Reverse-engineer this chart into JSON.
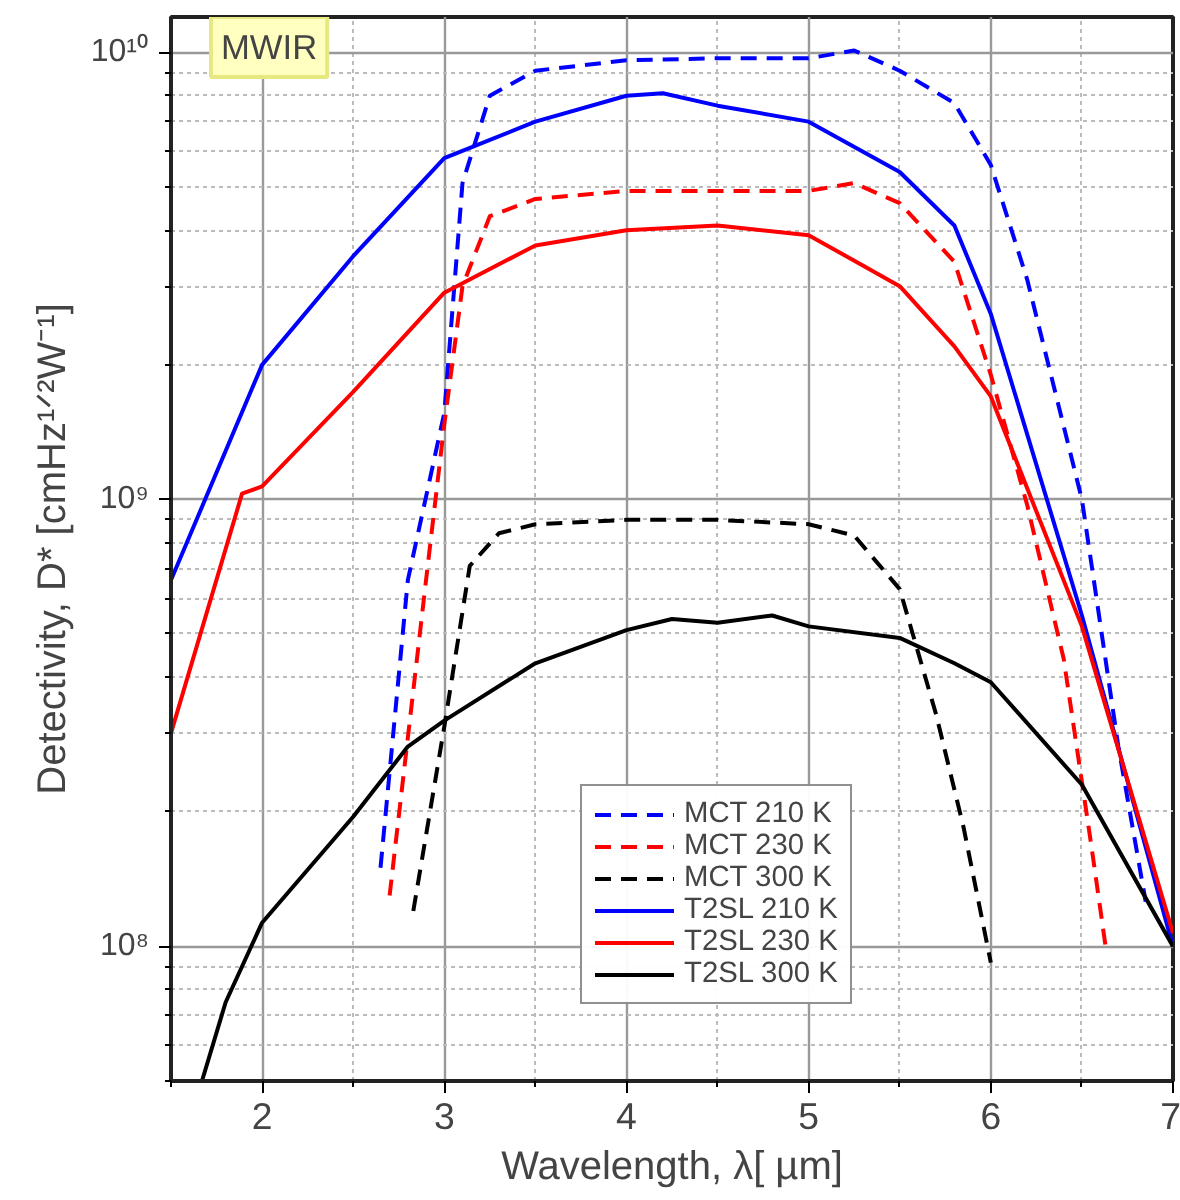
{
  "chart_data": {
    "type": "line",
    "xlabel": "Wavelength, λ[ µm]",
    "ylabel": "Detectivity, D* [cmHz¹ᐟ²W⁻¹]",
    "log": "y",
    "grid": true,
    "legend": "bottom",
    "xlim": [
      1.5,
      7
    ],
    "ylim": [
      50000000.0,
      12000000000.0
    ],
    "xticks": [
      2,
      3,
      4,
      5,
      6,
      7
    ],
    "yticks": [
      {
        "value": 100000000.0,
        "label": "10⁸"
      },
      {
        "value": 1000000000.0,
        "label": "10⁹"
      },
      {
        "value": 10000000000.0,
        "label": "10¹⁰"
      }
    ],
    "annotations": [
      "MWIR"
    ],
    "series": [
      {
        "name": "MCT 210 K",
        "color": "#0000ff",
        "line_style": "dashed",
        "x": [
          2.65,
          2.8,
          3.0,
          3.1,
          3.25,
          3.5,
          4.0,
          4.5,
          5.0,
          5.25,
          5.5,
          5.8,
          6.0,
          6.2,
          6.5,
          6.7,
          6.85
        ],
        "values": [
          150000000.0,
          660000000.0,
          1560000000.0,
          5100000000.0,
          8000000000.0,
          9100000000.0,
          9600000000.0,
          9700000000.0,
          9700000000.0,
          10100000000.0,
          9100000000.0,
          7700000000.0,
          5600000000.0,
          3100000000.0,
          1000000000.0,
          280000000.0,
          126000000.0
        ]
      },
      {
        "name": "MCT 230 K",
        "color": "#ff0000",
        "line_style": "dashed",
        "x": [
          2.7,
          2.9,
          3.0,
          3.1,
          3.25,
          3.5,
          4.0,
          4.5,
          5.0,
          5.25,
          5.5,
          5.8,
          6.0,
          6.2,
          6.4,
          6.55,
          6.63
        ],
        "values": [
          130000000.0,
          660000000.0,
          1470000000.0,
          3000000000.0,
          4300000000.0,
          4700000000.0,
          4900000000.0,
          4900000000.0,
          4900000000.0,
          5100000000.0,
          4600000000.0,
          3400000000.0,
          1900000000.0,
          970000000.0,
          440000000.0,
          170000000.0,
          100000000.0
        ]
      },
      {
        "name": "MCT 300 K",
        "color": "#000000",
        "line_style": "dashed",
        "x": [
          2.83,
          3.0,
          3.14,
          3.3,
          3.5,
          4.0,
          4.5,
          5.0,
          5.25,
          5.5,
          5.7,
          5.85,
          6.0
        ],
        "values": [
          120000000.0,
          310000000.0,
          710000000.0,
          840000000.0,
          880000000.0,
          900000000.0,
          900000000.0,
          880000000.0,
          830000000.0,
          630000000.0,
          330000000.0,
          185000000.0,
          92000000.0
        ]
      },
      {
        "name": "T2SL 210 K",
        "color": "#0000ff",
        "line_style": "solid",
        "x": [
          1.5,
          2.0,
          2.5,
          3.0,
          3.5,
          4.0,
          4.2,
          4.5,
          5.0,
          5.5,
          5.8,
          6.0,
          6.5,
          7.0
        ],
        "values": [
          660000000.0,
          2000000000.0,
          3500000000.0,
          5800000000.0,
          7000000000.0,
          8000000000.0,
          8100000000.0,
          7600000000.0,
          7000000000.0,
          5400000000.0,
          4100000000.0,
          2600000000.0,
          550000000.0,
          100000000.0
        ]
      },
      {
        "name": "T2SL 230 K",
        "color": "#ff0000",
        "line_style": "solid",
        "x": [
          1.5,
          1.89,
          2.0,
          2.5,
          3.0,
          3.5,
          4.0,
          4.5,
          5.0,
          5.5,
          5.8,
          6.0,
          6.5,
          7.0
        ],
        "values": [
          300000000.0,
          1030000000.0,
          1070000000.0,
          1740000000.0,
          2900000000.0,
          3700000000.0,
          4000000000.0,
          4100000000.0,
          3900000000.0,
          3000000000.0,
          2200000000.0,
          1700000000.0,
          520000000.0,
          107000000.0
        ]
      },
      {
        "name": "T2SL 300 K",
        "color": "#000000",
        "line_style": "solid",
        "x": [
          1.67,
          1.8,
          2.0,
          2.5,
          2.8,
          3.0,
          3.5,
          4.0,
          4.25,
          4.5,
          4.8,
          5.0,
          5.5,
          5.8,
          6.0,
          6.5,
          7.0
        ],
        "values": [
          50000000.0,
          75000000.0,
          113000000.0,
          195000000.0,
          280000000.0,
          320000000.0,
          430000000.0,
          510000000.0,
          540000000.0,
          530000000.0,
          550000000.0,
          520000000.0,
          490000000.0,
          430000000.0,
          390000000.0,
          230000000.0,
          100000000.0
        ]
      }
    ]
  }
}
